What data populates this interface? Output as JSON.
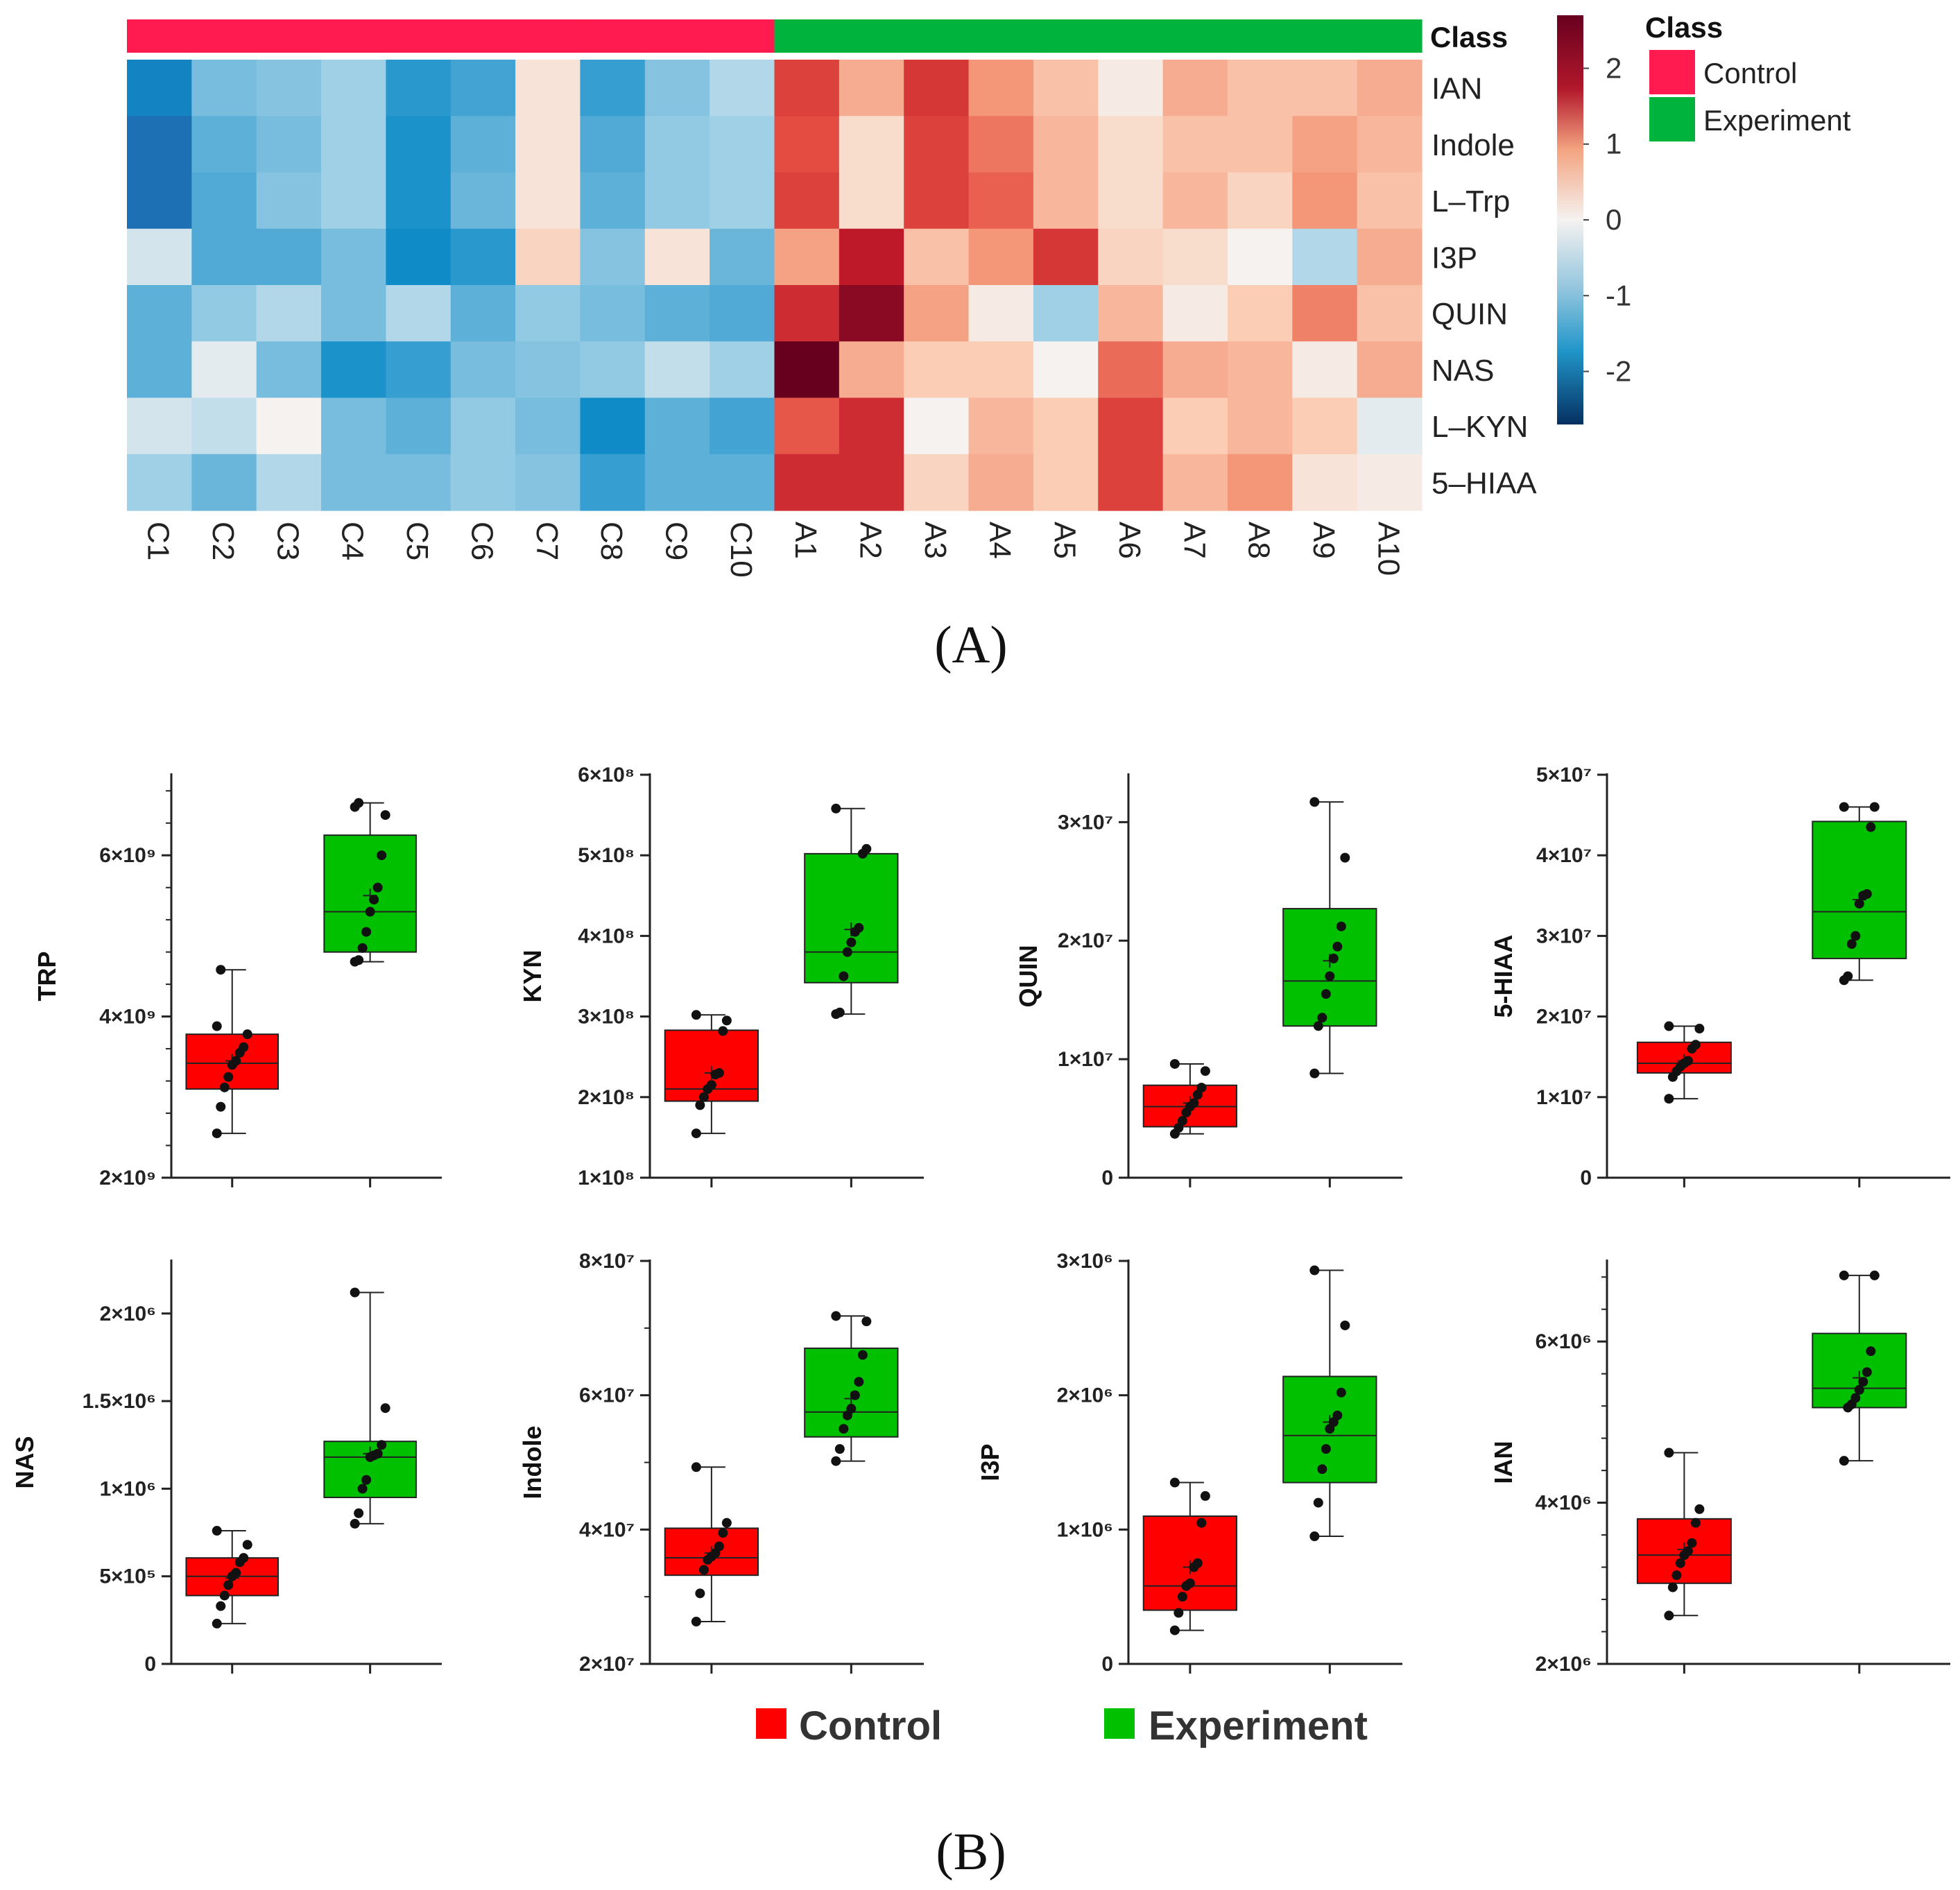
{
  "figure": {
    "label_a": "(A)",
    "label_b": "(B)"
  },
  "colors": {
    "control": "#ff1a4f",
    "experiment": "#00b33c",
    "box_control": "#ff0000",
    "box_experiment": "#00c000",
    "heat_low": "#053061",
    "heat_mid": "#f5f2f0",
    "heat_high": "#67001f"
  },
  "legend_bottom": {
    "control": "Control",
    "experiment": "Experiment"
  },
  "chart_data": [
    {
      "type": "heatmap",
      "title": "",
      "class_annotation_label": "Class",
      "columns": [
        "C1",
        "C2",
        "C3",
        "C4",
        "C5",
        "C6",
        "C7",
        "C8",
        "C9",
        "C10",
        "A1",
        "A2",
        "A3",
        "A4",
        "A5",
        "A6",
        "A7",
        "A8",
        "A9",
        "A10"
      ],
      "column_class": [
        "Control",
        "Control",
        "Control",
        "Control",
        "Control",
        "Control",
        "Control",
        "Control",
        "Control",
        "Control",
        "Experiment",
        "Experiment",
        "Experiment",
        "Experiment",
        "Experiment",
        "Experiment",
        "Experiment",
        "Experiment",
        "Experiment",
        "Experiment"
      ],
      "rows": [
        "IAN",
        "Indole",
        "L–Trp",
        "I3P",
        "QUIN",
        "NAS",
        "L–KYN",
        "5–HIAA"
      ],
      "values": [
        [
          -1.7,
          -0.8,
          -0.7,
          -0.5,
          -1.4,
          -1.2,
          0.2,
          -1.3,
          -0.7,
          -0.4,
          1.8,
          0.8,
          1.9,
          1.0,
          0.6,
          0.1,
          0.8,
          0.6,
          0.6,
          0.8
        ],
        [
          -1.9,
          -1.0,
          -0.8,
          -0.5,
          -1.5,
          -1.0,
          0.2,
          -1.1,
          -0.6,
          -0.5,
          1.7,
          0.3,
          1.8,
          1.3,
          0.7,
          0.3,
          0.6,
          0.6,
          0.9,
          0.7
        ],
        [
          -1.9,
          -1.1,
          -0.7,
          -0.5,
          -1.5,
          -0.9,
          0.2,
          -1.0,
          -0.6,
          -0.5,
          1.8,
          0.3,
          1.8,
          1.5,
          0.7,
          0.3,
          0.7,
          0.4,
          1.0,
          0.6
        ],
        [
          -0.2,
          -1.1,
          -1.1,
          -0.8,
          -1.6,
          -1.4,
          0.4,
          -0.7,
          0.2,
          -0.9,
          0.9,
          2.2,
          0.6,
          1.0,
          1.9,
          0.4,
          0.3,
          0.0,
          -0.4,
          0.8
        ],
        [
          -1.0,
          -0.6,
          -0.4,
          -0.8,
          -0.4,
          -1.0,
          -0.6,
          -0.8,
          -1.0,
          -1.1,
          2.0,
          2.5,
          0.9,
          0.1,
          -0.5,
          0.7,
          0.1,
          0.5,
          1.2,
          0.6
        ],
        [
          -1.0,
          -0.1,
          -0.8,
          -1.5,
          -1.3,
          -0.8,
          -0.7,
          -0.6,
          -0.3,
          -0.5,
          2.8,
          0.8,
          0.5,
          0.5,
          0.0,
          1.4,
          0.8,
          0.7,
          0.1,
          0.8
        ],
        [
          -0.2,
          -0.3,
          0.0,
          -0.8,
          -1.0,
          -0.6,
          -0.8,
          -1.6,
          -1.0,
          -1.2,
          1.6,
          2.0,
          0.0,
          0.7,
          0.5,
          1.8,
          0.5,
          0.7,
          0.5,
          -0.1
        ],
        [
          -0.5,
          -0.9,
          -0.4,
          -0.8,
          -0.8,
          -0.6,
          -0.7,
          -1.3,
          -1.0,
          -1.0,
          2.0,
          2.0,
          0.4,
          0.8,
          0.5,
          1.8,
          0.7,
          1.0,
          0.2,
          0.1
        ]
      ],
      "colorbar": {
        "min": -2.7,
        "max": 2.7,
        "ticks": [
          2,
          1,
          0,
          -1,
          -2
        ],
        "tick_labels": [
          "2",
          "1",
          "0",
          "-1",
          "-2"
        ]
      },
      "legend": {
        "title": "Class",
        "entries": [
          "Control",
          "Experiment"
        ]
      }
    },
    {
      "type": "box",
      "ylabel": "TRP",
      "xlabel": "",
      "title": "",
      "ylim": [
        2000000000.0,
        7000000000.0
      ],
      "yticks": [
        2000000000.0,
        4000000000.0,
        6000000000.0
      ],
      "yticklabels": [
        "2×10⁹",
        "4×10⁹",
        "6×10⁹"
      ],
      "minor_ticks": 4,
      "series": [
        {
          "name": "Control",
          "min": 2550000000.0,
          "q1": 3100000000.0,
          "median": 3420000000.0,
          "q3": 3780000000.0,
          "max": 4580000000.0,
          "mean": 3450000000.0,
          "points": [
            2550000000.0,
            2880000000.0,
            3120000000.0,
            3250000000.0,
            3400000000.0,
            3450000000.0,
            3550000000.0,
            3620000000.0,
            3780000000.0,
            3880000000.0,
            4580000000.0
          ]
        },
        {
          "name": "Experiment",
          "min": 4680000000.0,
          "q1": 4800000000.0,
          "median": 5300000000.0,
          "q3": 6250000000.0,
          "max": 6650000000.0,
          "mean": 5500000000.0,
          "points": [
            4680000000.0,
            4700000000.0,
            4850000000.0,
            5050000000.0,
            5300000000.0,
            5450000000.0,
            5600000000.0,
            6000000000.0,
            6500000000.0,
            6600000000.0,
            6650000000.0
          ]
        }
      ]
    },
    {
      "type": "box",
      "ylabel": "KYN",
      "xlabel": "",
      "title": "",
      "ylim": [
        100000000.0,
        600000000.0
      ],
      "yticks": [
        100000000.0,
        200000000.0,
        300000000.0,
        400000000.0,
        500000000.0,
        600000000.0
      ],
      "yticklabels": [
        "1×10⁸",
        "2×10⁸",
        "3×10⁸",
        "4×10⁸",
        "5×10⁸",
        "6×10⁸"
      ],
      "minor_ticks": 0,
      "series": [
        {
          "name": "Control",
          "min": 155000000.0,
          "q1": 195000000.0,
          "median": 210000000.0,
          "q3": 283000000.0,
          "max": 302000000.0,
          "mean": 230000000.0,
          "points": [
            155000000.0,
            190000000.0,
            200000000.0,
            210000000.0,
            215000000.0,
            228000000.0,
            230000000.0,
            282000000.0,
            295000000.0,
            302000000.0
          ]
        },
        {
          "name": "Experiment",
          "min": 303000000.0,
          "q1": 342000000.0,
          "median": 380000000.0,
          "q3": 502000000.0,
          "max": 558000000.0,
          "mean": 408000000.0,
          "points": [
            303000000.0,
            305000000.0,
            350000000.0,
            380000000.0,
            392000000.0,
            405000000.0,
            410000000.0,
            502000000.0,
            508000000.0,
            558000000.0
          ]
        }
      ]
    },
    {
      "type": "box",
      "ylabel": "QUIN",
      "xlabel": "",
      "title": "",
      "ylim": [
        0,
        34000000.0
      ],
      "yticks": [
        0,
        10000000.0,
        20000000.0,
        30000000.0
      ],
      "yticklabels": [
        "0",
        "1×10⁷",
        "2×10⁷",
        "3×10⁷"
      ],
      "minor_ticks": 0,
      "series": [
        {
          "name": "Control",
          "min": 3700000.0,
          "q1": 4300000.0,
          "median": 6000000.0,
          "q3": 7800000.0,
          "max": 9600000.0,
          "mean": 6300000.0,
          "points": [
            3700000.0,
            4200000.0,
            4800000.0,
            5500000.0,
            6000000.0,
            6300000.0,
            7000000.0,
            7600000.0,
            9000000.0,
            9600000.0
          ]
        },
        {
          "name": "Experiment",
          "min": 8800000.0,
          "q1": 12800000.0,
          "median": 16600000.0,
          "q3": 22700000.0,
          "max": 31700000.0,
          "mean": 18300000.0,
          "points": [
            8800000.0,
            12800000.0,
            13500000.0,
            15500000.0,
            17000000.0,
            18500000.0,
            19500000.0,
            21200000.0,
            27000000.0,
            31700000.0
          ]
        }
      ]
    },
    {
      "type": "box",
      "ylabel": "5-HIAA",
      "xlabel": "",
      "title": "",
      "ylim": [
        0,
        50000000.0
      ],
      "yticks": [
        0,
        10000000.0,
        20000000.0,
        30000000.0,
        40000000.0,
        50000000.0
      ],
      "yticklabels": [
        "0",
        "1×10⁷",
        "2×10⁷",
        "3×10⁷",
        "4×10⁷",
        "5×10⁷"
      ],
      "minor_ticks": 0,
      "series": [
        {
          "name": "Control",
          "min": 9800000.0,
          "q1": 13000000.0,
          "median": 14200000.0,
          "q3": 16800000.0,
          "max": 18800000.0,
          "mean": 14500000.0,
          "points": [
            9800000.0,
            12500000.0,
            13200000.0,
            13800000.0,
            14200000.0,
            14500000.0,
            16000000.0,
            16500000.0,
            18500000.0,
            18800000.0
          ]
        },
        {
          "name": "Experiment",
          "min": 24500000.0,
          "q1": 27200000.0,
          "median": 33000000.0,
          "q3": 44200000.0,
          "max": 46000000.0,
          "mean": 34500000.0,
          "points": [
            24500000.0,
            25000000.0,
            29000000.0,
            30000000.0,
            34000000.0,
            35000000.0,
            35200000.0,
            43500000.0,
            46000000.0,
            46000000.0
          ]
        }
      ]
    },
    {
      "type": "box",
      "ylabel": "NAS",
      "xlabel": "",
      "title": "",
      "ylim": [
        0,
        2300000.0
      ],
      "yticks": [
        0,
        500000.0,
        1000000.0,
        1500000.0,
        2000000.0
      ],
      "yticklabels": [
        "0",
        "5×10⁵",
        "1×10⁶",
        "1.5×10⁶",
        "2×10⁶"
      ],
      "minor_ticks": 0,
      "series": [
        {
          "name": "Control",
          "min": 230000.0,
          "q1": 390000.0,
          "median": 500000.0,
          "q3": 605000.0,
          "max": 760000.0,
          "mean": 490000.0,
          "points": [
            230000.0,
            330000.0,
            390000.0,
            450000.0,
            500000.0,
            520000.0,
            580000.0,
            605000.0,
            680000.0,
            760000.0
          ]
        },
        {
          "name": "Experiment",
          "min": 800000.0,
          "q1": 950000.0,
          "median": 1180000.0,
          "q3": 1270000.0,
          "max": 2120000.0,
          "mean": 1200000.0,
          "points": [
            800000.0,
            860000.0,
            1000000.0,
            1050000.0,
            1180000.0,
            1190000.0,
            1200000.0,
            1250000.0,
            1460000.0,
            2120000.0
          ]
        }
      ]
    },
    {
      "type": "box",
      "ylabel": "Indole",
      "xlabel": "",
      "title": "",
      "ylim": [
        20000000.0,
        80000000.0
      ],
      "yticks": [
        20000000.0,
        40000000.0,
        60000000.0,
        80000000.0
      ],
      "yticklabels": [
        "2×10⁷",
        "4×10⁷",
        "6×10⁷",
        "8×10⁷"
      ],
      "minor_ticks": 1,
      "series": [
        {
          "name": "Control",
          "min": 26300000.0,
          "q1": 33200000.0,
          "median": 35800000.0,
          "q3": 40200000.0,
          "max": 49300000.0,
          "mean": 36500000.0,
          "points": [
            26300000.0,
            30500000.0,
            34000000.0,
            35500000.0,
            36000000.0,
            36500000.0,
            37500000.0,
            39500000.0,
            41000000.0,
            49300000.0
          ]
        },
        {
          "name": "Experiment",
          "min": 50200000.0,
          "q1": 53800000.0,
          "median": 57500000.0,
          "q3": 67000000.0,
          "max": 71800000.0,
          "mean": 59500000.0,
          "points": [
            50200000.0,
            52000000.0,
            55000000.0,
            57000000.0,
            58000000.0,
            60000000.0,
            62000000.0,
            66000000.0,
            71000000.0,
            71800000.0
          ]
        }
      ]
    },
    {
      "type": "box",
      "ylabel": "I3P",
      "xlabel": "",
      "title": "",
      "ylim": [
        0,
        3000000.0
      ],
      "yticks": [
        0,
        1000000.0,
        2000000.0,
        3000000.0
      ],
      "yticklabels": [
        "0",
        "1×10⁶",
        "2×10⁶",
        "3×10⁶"
      ],
      "minor_ticks": 0,
      "series": [
        {
          "name": "Control",
          "min": 250000.0,
          "q1": 400000.0,
          "median": 580000.0,
          "q3": 1100000.0,
          "max": 1350000.0,
          "mean": 720000.0,
          "points": [
            250000.0,
            380000.0,
            500000.0,
            580000.0,
            600000.0,
            720000.0,
            750000.0,
            1050000.0,
            1250000.0,
            1350000.0
          ]
        },
        {
          "name": "Experiment",
          "min": 950000.0,
          "q1": 1350000.0,
          "median": 1700000.0,
          "q3": 2140000.0,
          "max": 2930000.0,
          "mean": 1800000.0,
          "points": [
            950000.0,
            1200000.0,
            1450000.0,
            1600000.0,
            1750000.0,
            1800000.0,
            1850000.0,
            2020000.0,
            2520000.0,
            2930000.0
          ]
        }
      ]
    },
    {
      "type": "box",
      "ylabel": "IAN",
      "xlabel": "",
      "title": "",
      "ylim": [
        2000000.0,
        7000000.0
      ],
      "yticks": [
        2000000.0,
        4000000.0,
        6000000.0
      ],
      "yticklabels": [
        "2×10⁶",
        "4×10⁶",
        "6×10⁶"
      ],
      "minor_ticks": 4,
      "series": [
        {
          "name": "Control",
          "min": 2600000.0,
          "q1": 3000000.0,
          "median": 3350000.0,
          "q3": 3800000.0,
          "max": 4620000.0,
          "mean": 3420000.0,
          "points": [
            2600000.0,
            2950000.0,
            3100000.0,
            3250000.0,
            3350000.0,
            3400000.0,
            3500000.0,
            3750000.0,
            3920000.0,
            4620000.0
          ]
        },
        {
          "name": "Experiment",
          "min": 4520000.0,
          "q1": 5180000.0,
          "median": 5420000.0,
          "q3": 6100000.0,
          "max": 6820000.0,
          "mean": 5550000.0,
          "points": [
            4520000.0,
            5180000.0,
            5220000.0,
            5300000.0,
            5400000.0,
            5500000.0,
            5620000.0,
            5880000.0,
            6820000.0,
            6820000.0
          ]
        }
      ]
    }
  ]
}
